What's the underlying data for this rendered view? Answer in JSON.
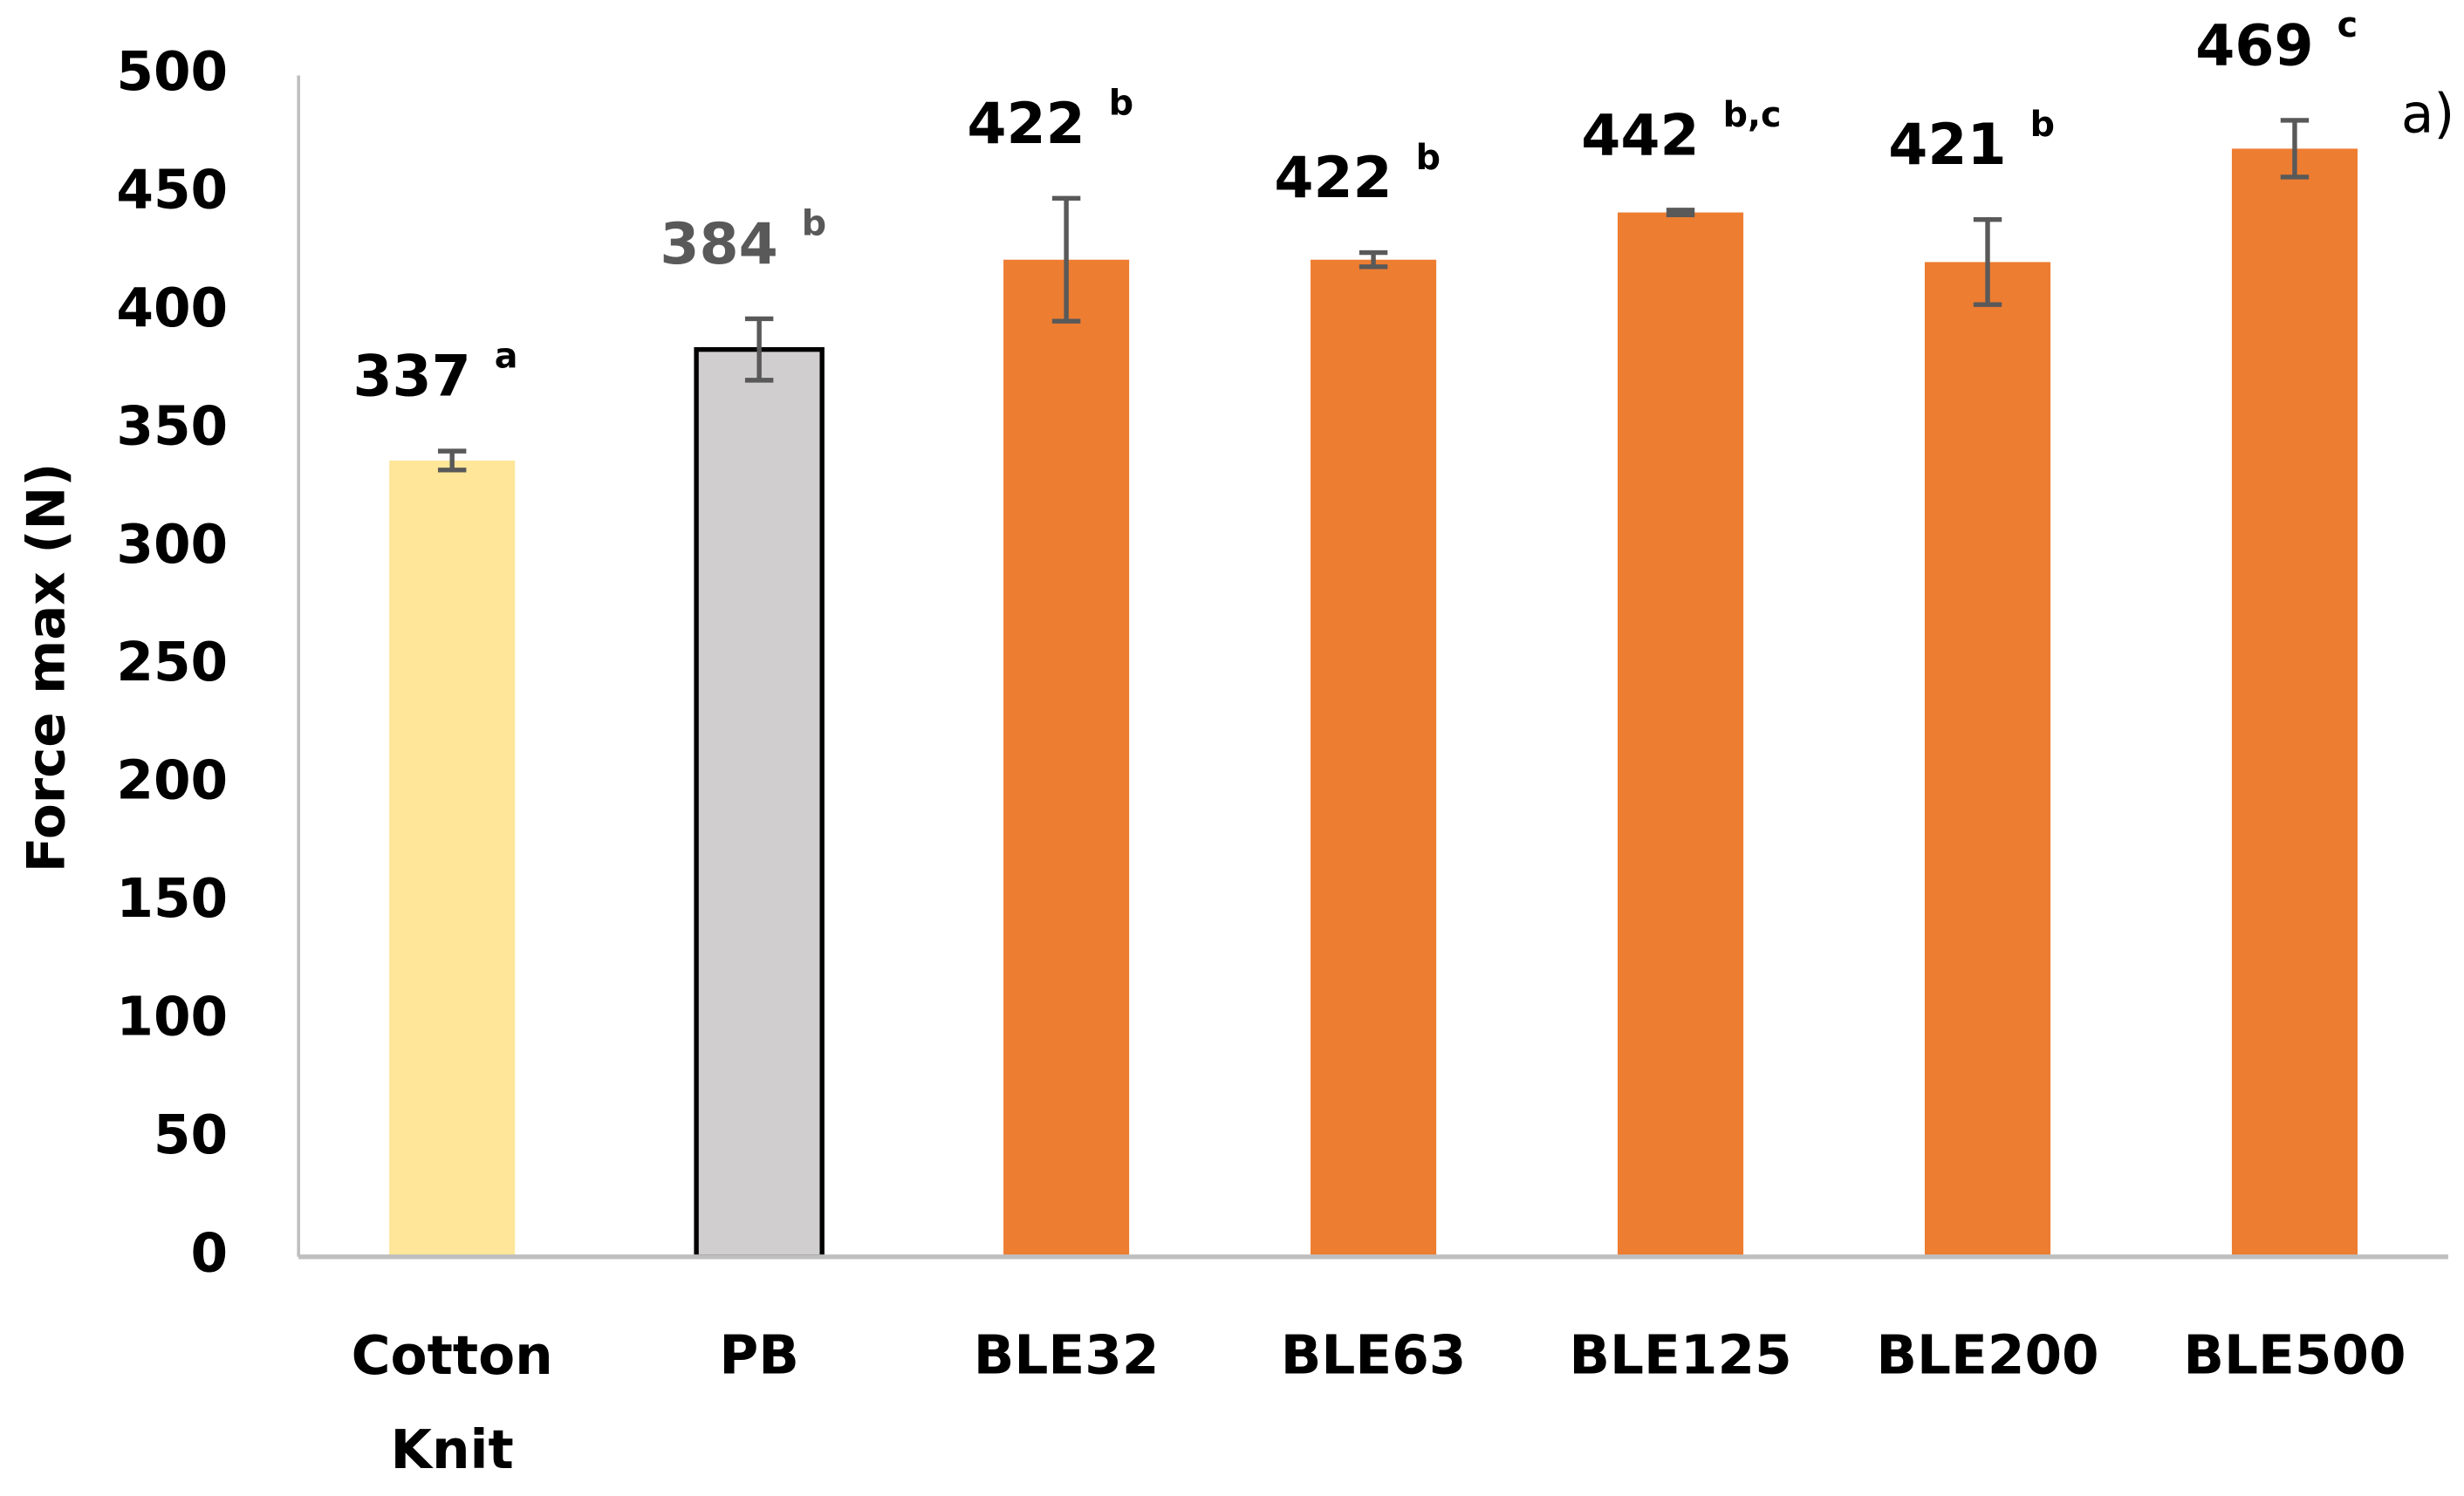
{
  "chart_data": {
    "type": "bar",
    "y_label": "Force max (N)",
    "annotation": "a)",
    "categories": [
      "Cotton Knit",
      "PB",
      "BLE32",
      "BLE63",
      "BLE125",
      "BLE200",
      "BLE500"
    ],
    "values": [
      337,
      384,
      422,
      422,
      442,
      421,
      469
    ],
    "errors": [
      4,
      13,
      26,
      3,
      1,
      18,
      12
    ],
    "significance": [
      "a",
      "b",
      "b",
      "b",
      "b,c",
      "b",
      "c"
    ],
    "colors": [
      "#ffe699",
      "#d0cece",
      "#ed7d31",
      "#ed7d31",
      "#ed7d31",
      "#ed7d31",
      "#ed7d31"
    ],
    "label_colors": [
      "#000000",
      "#595959",
      "#000000",
      "#000000",
      "#000000",
      "#000000",
      "#000000"
    ],
    "ylim": [
      0,
      500
    ],
    "yticks": [
      0,
      50,
      100,
      150,
      200,
      250,
      300,
      350,
      400,
      450,
      500
    ],
    "grid": false
  }
}
